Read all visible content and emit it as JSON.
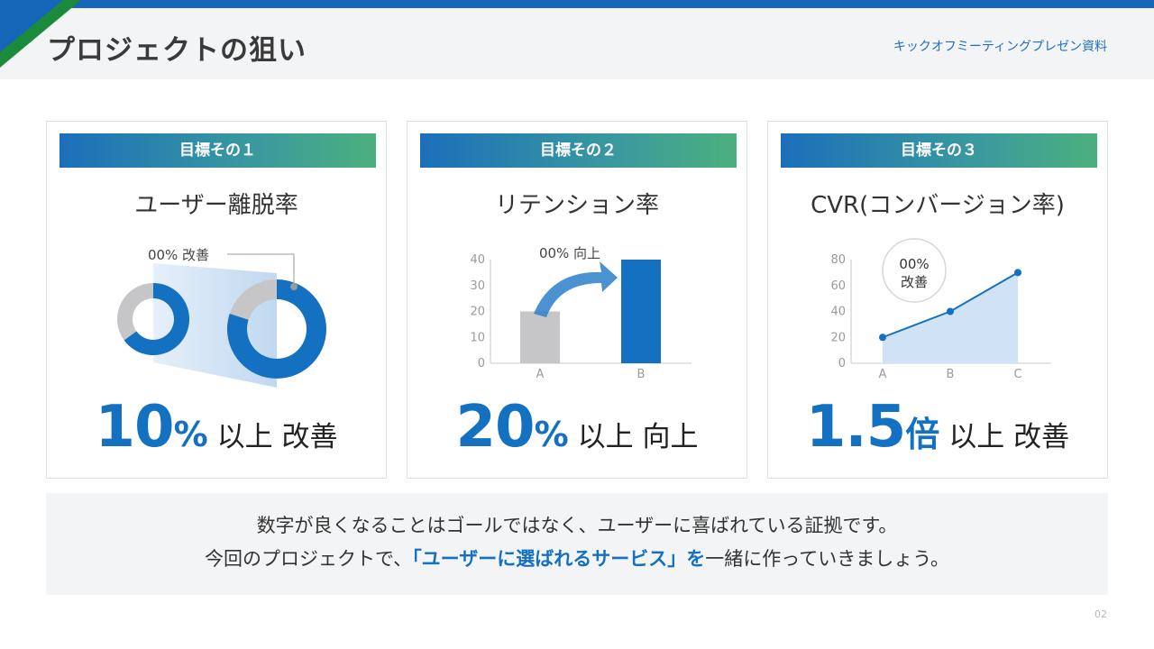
{
  "header": {
    "title": "プロジェクトの狙い",
    "deck": "キックオフミーティングプレゼン資料"
  },
  "cards": [
    {
      "label": "目標その１",
      "title": "ユーザー離脱率",
      "annotation": "00% 改善",
      "big_number": "10",
      "big_unit": "%",
      "big_suffix": "以上 改善"
    },
    {
      "label": "目標その２",
      "title": "リテンション率",
      "annotation": "00% 向上",
      "big_number": "20",
      "big_unit": "%",
      "big_suffix": "以上 向上"
    },
    {
      "label": "目標その３",
      "title": "CVR(コンバージョン率)",
      "annotation_line1": "00%",
      "annotation_line2": "改善",
      "big_number": "1.5",
      "big_unit": "倍",
      "big_suffix": "以上 改善"
    }
  ],
  "chart_data": [
    {
      "type": "pie",
      "series": [
        {
          "values": [
            35,
            65
          ]
        },
        {
          "values": [
            20,
            80
          ]
        }
      ]
    },
    {
      "type": "bar",
      "categories": [
        "A",
        "B"
      ],
      "values": [
        20,
        40
      ],
      "ylim": [
        0,
        40
      ],
      "yticks": [
        0,
        10,
        20,
        30,
        40
      ]
    },
    {
      "type": "area",
      "categories": [
        "A",
        "B",
        "C"
      ],
      "values": [
        20,
        40,
        70
      ],
      "ylim": [
        0,
        80
      ],
      "yticks": [
        0,
        20,
        40,
        60,
        80
      ]
    }
  ],
  "message": {
    "line1": "数字が良くなることはゴールではなく、ユーザーに喜ばれている証拠です。",
    "line2_prefix": "今回のプロジェクトで、",
    "line2_highlight": "「ユーザーに選ばれるサービス」を",
    "line2_suffix": "一緒に作っていきましょう。"
  },
  "page_number": "02",
  "colors": {
    "accent": "#1470c0",
    "gray_bar": "#c6c6c8",
    "area_fill": "#cfe3f5",
    "gradient_start": "#1b6fb9",
    "gradient_end": "#4bb07e"
  }
}
